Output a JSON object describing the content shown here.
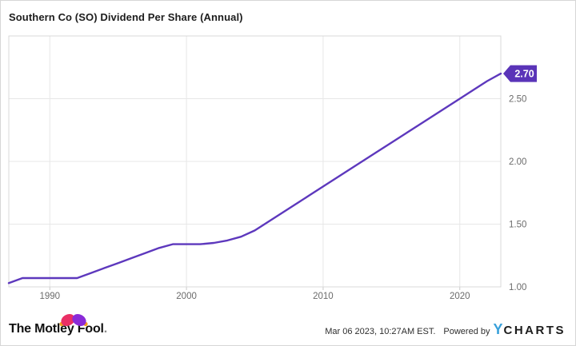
{
  "header": {
    "title": "Southern Co (SO) Dividend Per Share (Annual)"
  },
  "chart_data": {
    "type": "line",
    "title": "Southern Co (SO) Dividend Per Share (Annual)",
    "series_name": "Dividend Per Share (Annual)",
    "x": [
      1987,
      1988,
      1989,
      1990,
      1991,
      1992,
      1993,
      1994,
      1995,
      1996,
      1997,
      1998,
      1999,
      2000,
      2001,
      2002,
      2003,
      2004,
      2005,
      2006,
      2007,
      2008,
      2009,
      2010,
      2011,
      2012,
      2013,
      2014,
      2015,
      2016,
      2017,
      2018,
      2019,
      2020,
      2021,
      2022,
      2023
    ],
    "values": [
      1.03,
      1.07,
      1.07,
      1.07,
      1.07,
      1.07,
      1.11,
      1.15,
      1.19,
      1.23,
      1.27,
      1.31,
      1.34,
      1.34,
      1.34,
      1.35,
      1.37,
      1.4,
      1.45,
      1.52,
      1.59,
      1.66,
      1.73,
      1.8,
      1.87,
      1.94,
      2.01,
      2.08,
      2.15,
      2.22,
      2.29,
      2.36,
      2.43,
      2.5,
      2.57,
      2.64,
      2.7
    ],
    "last_value_label": "2.70",
    "x_ticks": [
      1990,
      2000,
      2010,
      2020
    ],
    "y_ticks": [
      {
        "value": 1.0,
        "label": "1.00"
      },
      {
        "value": 1.5,
        "label": "1.50"
      },
      {
        "value": 2.0,
        "label": "2.00"
      },
      {
        "value": 2.5,
        "label": "2.50"
      }
    ],
    "xlim": [
      1987,
      2023
    ],
    "ylim": [
      1.0,
      3.0
    ],
    "grid": true,
    "legend": "none",
    "colors": {
      "line": "#5d38bd",
      "badge_bg": "#5a34b8",
      "badge_text": "#ffffff",
      "grid": "#e7e7e7",
      "frame": "#d9d9d9",
      "tick": "#c9c9c9",
      "axis_label": "#6b6b6b"
    }
  },
  "footer": {
    "logo_text": "The Motley Fool",
    "logo_period": ".",
    "timestamp": "Mar 06 2023, 10:27AM EST.",
    "powered_by": "Powered by",
    "ycharts_y": "Y",
    "ycharts_rest": "CHARTS"
  }
}
